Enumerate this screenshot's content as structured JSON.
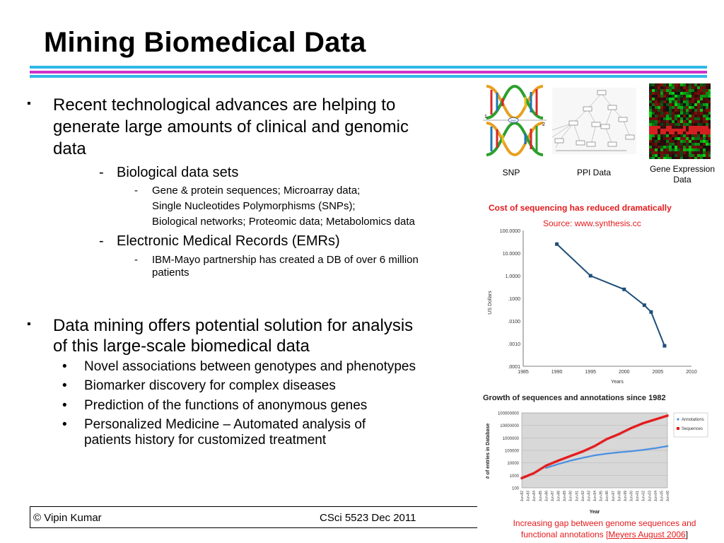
{
  "slide": {
    "title": "Mining Biomedical Data",
    "accent_colors": {
      "rule_blue": "#2eb8e6",
      "rule_magenta": "#cc33cc",
      "text_red": "#e41a1c"
    },
    "bullets": {
      "b1_line1": "Recent technological advances are helping to",
      "b1_line2": "generate large amounts of clinical and genomic",
      "b1_line3": "data",
      "b1_sub1": "Biological data sets",
      "b1_sub1_a": "Gene & protein sequences; Microarray data;",
      "b1_sub1_b": "Single Nucleotides Polymorphisms (SNPs);",
      "b1_sub1_c": "Biological networks; Proteomic data; Metabolomics data",
      "b1_sub2": "Electronic Medical Records (EMRs)",
      "b1_sub2_a1": "IBM-Mayo partnership has created a DB of over 6 million",
      "b1_sub2_a2": "patients",
      "b2_line1": "Data mining offers potential solution for analysis",
      "b2_line2": "of this large-scale biomedical data",
      "b2_items": [
        "Novel associations between genotypes and phenotypes",
        "Biomarker discovery for complex diseases",
        "Prediction of the functions of anonymous genes",
        "Personalized Medicine – Automated analysis of"
      ],
      "b2_item4_line2": "patients history for customized treatment",
      "marker_square": "▪",
      "marker_dash": "-",
      "marker_dot": "•"
    },
    "images": {
      "snp_label": "SNP",
      "snp_num1": "1",
      "snp_num2": "2",
      "snp_tag": "SNP",
      "ppi_label": "PPI Data",
      "gene_label_line1": "Gene Expression",
      "gene_label_line2": "Data"
    },
    "cost_chart": {
      "title": "Cost of sequencing has reduced dramatically",
      "source": "Source: www.synthesis.cc"
    },
    "growth_chart": {
      "title": "Growth of sequences and annotations since 1982"
    },
    "gap_caption": {
      "line1": "Increasing gap between genome sequences and",
      "line2a": "functional annotations [",
      "line2b": "Meyers August 2006",
      "line2c": "]"
    },
    "footer": {
      "author": "© Vipin Kumar",
      "course": "CSci 5523 Dec  2011"
    }
  },
  "chart_data": [
    {
      "type": "line",
      "title": "",
      "xlabel": "Years",
      "ylabel": "US Dollars",
      "x_ticks": [
        "1985",
        "1990",
        "1995",
        "2000",
        "2005",
        "2010"
      ],
      "y_ticks": [
        "100.0000",
        "10.0000",
        "1.0000",
        ".1000",
        ".0100",
        ".0010",
        ".0001"
      ],
      "y_scale": "log",
      "xlim": [
        1985,
        2010
      ],
      "ylim": [
        0.0001,
        100
      ],
      "grid": false,
      "series": [
        {
          "values": [
            {
              "x": 1990,
              "y": 25
            },
            {
              "x": 1995,
              "y": 1
            },
            {
              "x": 2000,
              "y": 0.25
            },
            {
              "x": 2003,
              "y": 0.05
            },
            {
              "x": 2004,
              "y": 0.025
            },
            {
              "x": 2006,
              "y": 0.0008
            }
          ]
        }
      ],
      "color": "#1f4e79"
    },
    {
      "type": "scatter",
      "title": "Growth of sequences and annotations since 1982",
      "xlabel": "Year",
      "ylabel": "# of entries in Database",
      "x_ticks": [
        "Jun-82",
        "Jun-83",
        "Jun-84",
        "Jun-85",
        "Jun-86",
        "Jun-87",
        "Jun-88",
        "Jun-89",
        "Jun-90",
        "Jun-91",
        "Jun-92",
        "Jun-93",
        "Jun-94",
        "Jun-95",
        "Jun-96",
        "Jun-97",
        "Jun-98",
        "Jun-99",
        "Jun-00",
        "Jun-01",
        "Jun-02",
        "Jun-03",
        "Jun-04",
        "Jun-05",
        "Jun-06"
      ],
      "y_ticks": [
        "100000000",
        "10000000",
        "1000000",
        "100000",
        "10000",
        "1000",
        "100"
      ],
      "y_scale": "log",
      "ylim": [
        100,
        100000000
      ],
      "grid": true,
      "legend": "right",
      "series": [
        {
          "name": "Annotations",
          "color": "#4a90e2",
          "values": [
            [
              1986,
              4000
            ],
            [
              1988,
              8000
            ],
            [
              1990,
              15000
            ],
            [
              1992,
              25000
            ],
            [
              1994,
              40000
            ],
            [
              1996,
              55000
            ],
            [
              1998,
              70000
            ],
            [
              2000,
              85000
            ],
            [
              2002,
              110000
            ],
            [
              2004,
              150000
            ],
            [
              2006,
              220000
            ]
          ]
        },
        {
          "name": "Sequences",
          "color": "#e41a1c",
          "values": [
            [
              1982,
              600
            ],
            [
              1984,
              1500
            ],
            [
              1986,
              6000
            ],
            [
              1988,
              15000
            ],
            [
              1990,
              35000
            ],
            [
              1992,
              80000
            ],
            [
              1994,
              220000
            ],
            [
              1996,
              800000
            ],
            [
              1998,
              2000000
            ],
            [
              2000,
              6000000
            ],
            [
              2002,
              15000000
            ],
            [
              2004,
              30000000
            ],
            [
              2006,
              60000000
            ]
          ]
        }
      ]
    }
  ]
}
